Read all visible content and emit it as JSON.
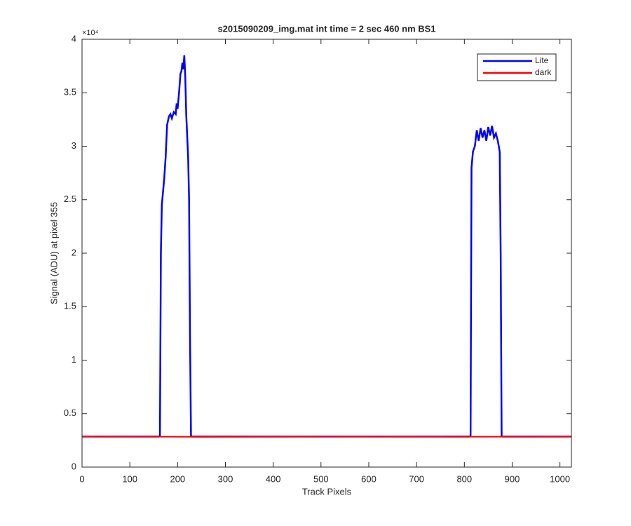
{
  "chart_data": {
    "type": "line",
    "title": "s2015090209_img.mat int time = 2 sec  460 nm BS1",
    "x_label": "Track Pixels",
    "y_label": "Signal (ADU) at pixel 355",
    "y_exponent_label": "×10⁴",
    "xlim": [
      0,
      1024
    ],
    "xticks": [
      0,
      100,
      200,
      300,
      400,
      500,
      600,
      700,
      800,
      900,
      1000
    ],
    "ylim": [
      0,
      40000
    ],
    "yticks": [
      {
        "value": 0,
        "label": "0"
      },
      {
        "value": 5000,
        "label": "0.5"
      },
      {
        "value": 10000,
        "label": "1"
      },
      {
        "value": 15000,
        "label": "1.5"
      },
      {
        "value": 20000,
        "label": "2"
      },
      {
        "value": 25000,
        "label": "2.5"
      },
      {
        "value": 30000,
        "label": "3"
      },
      {
        "value": 35000,
        "label": "3.5"
      },
      {
        "value": 40000,
        "label": "4"
      }
    ],
    "grid": false,
    "legend": "northeast",
    "series": [
      {
        "name": "Lite",
        "color": "#0000ff",
        "x": [
          0,
          160,
          163,
          165,
          167,
          172,
          175,
          178,
          182,
          185,
          188,
          192,
          196,
          198,
          200,
          203,
          206,
          208,
          210,
          212,
          214,
          216,
          218,
          220,
          222,
          224,
          226,
          228,
          230,
          810,
          813,
          815,
          818,
          822,
          826,
          830,
          834,
          838,
          842,
          846,
          850,
          854,
          858,
          862,
          866,
          870,
          874,
          876,
          878,
          880,
          1024
        ],
        "values": [
          2850,
          2850,
          2900,
          20000,
          24500,
          27000,
          29000,
          32000,
          32800,
          33000,
          32600,
          33200,
          33000,
          34000,
          33500,
          35000,
          36800,
          37000,
          37800,
          37200,
          38500,
          36500,
          33000,
          31000,
          29000,
          25000,
          12000,
          2900,
          2850,
          2850,
          2900,
          28000,
          29500,
          30000,
          31500,
          30500,
          31700,
          30800,
          31500,
          30500,
          31800,
          31000,
          31900,
          30800,
          31200,
          30500,
          29500,
          20000,
          2900,
          2850,
          2850
        ]
      },
      {
        "name": "dark",
        "color": "#ff0000",
        "x": [
          0,
          256,
          512,
          768,
          1024
        ],
        "values": [
          2850,
          2830,
          2860,
          2840,
          2850
        ]
      }
    ]
  }
}
